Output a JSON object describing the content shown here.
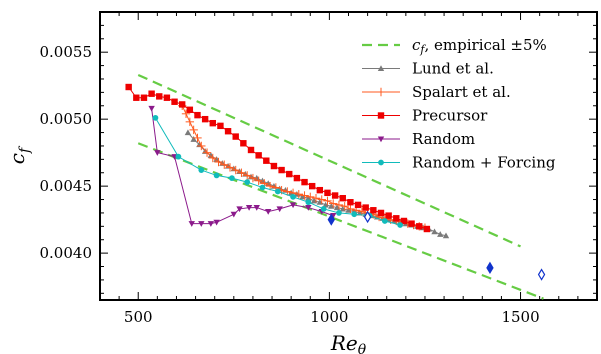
{
  "chart_data": {
    "type": "line",
    "xlabel": "Reθ",
    "ylabel": "c_f",
    "xlim": [
      400,
      1700
    ],
    "ylim": [
      0.00365,
      0.0058
    ],
    "x_ticks": [
      500,
      1000,
      1500
    ],
    "x_tick_labels": [
      "500",
      "1000",
      "1500"
    ],
    "y_ticks": [
      0.004,
      0.0045,
      0.005,
      0.0055
    ],
    "y_tick_labels": [
      "0.0040",
      "0.0045",
      "0.0050",
      "0.0055"
    ],
    "legend_position": "top-right",
    "series": [
      {
        "name": "c_f, empirical ±5%",
        "legend_parts": [
          "c",
          "f",
          ", empirical ±5%"
        ],
        "style": "dashed",
        "color": "#66cc44",
        "marker": "none",
        "lines": [
          {
            "x": [
              500,
              1500
            ],
            "y": [
              0.00533,
              0.00405
            ]
          },
          {
            "x": [
              500,
              1560
            ],
            "y": [
              0.00482,
              0.00366
            ]
          }
        ]
      },
      {
        "name": "Lund et al.",
        "color": "#7a7a7a",
        "marker": "triangle-up",
        "x": [
          630,
          645,
          660,
          675,
          690,
          705,
          720,
          735,
          750,
          765,
          780,
          795,
          810,
          825,
          840,
          855,
          870,
          885,
          900,
          915,
          930,
          945,
          960,
          975,
          990,
          1005,
          1020,
          1035,
          1050,
          1065,
          1080,
          1095,
          1110,
          1125,
          1140,
          1155,
          1170,
          1185,
          1200,
          1215,
          1230,
          1245,
          1260,
          1275,
          1290,
          1305
        ],
        "y": [
          0.0049,
          0.00485,
          0.00481,
          0.00476,
          0.00473,
          0.0047,
          0.00467,
          0.00465,
          0.00463,
          0.00461,
          0.00459,
          0.00457,
          0.00456,
          0.00454,
          0.00452,
          0.0045,
          0.00448,
          0.00447,
          0.00445,
          0.00444,
          0.00442,
          0.00441,
          0.00439,
          0.00438,
          0.00436,
          0.00435,
          0.00434,
          0.00433,
          0.00432,
          0.00431,
          0.0043,
          0.00429,
          0.00428,
          0.00427,
          0.00426,
          0.00425,
          0.00424,
          0.00423,
          0.00422,
          0.00421,
          0.0042,
          0.00419,
          0.00418,
          0.00416,
          0.00414,
          0.00413
        ]
      },
      {
        "name": "Spalart et al.",
        "color": "#ff5a1f",
        "marker": "plus",
        "x": [
          615,
          625,
          635,
          645,
          655,
          665,
          680,
          695,
          710,
          725,
          740,
          755,
          770,
          785,
          800,
          815,
          830,
          845,
          860,
          875,
          890,
          905,
          920,
          935,
          950,
          965,
          980,
          995,
          1010,
          1025,
          1040,
          1055,
          1070,
          1085,
          1100,
          1115,
          1130,
          1145,
          1160,
          1175,
          1190,
          1205,
          1220,
          1235,
          1250
        ],
        "y": [
          0.0051,
          0.00504,
          0.00498,
          0.00492,
          0.00486,
          0.0048,
          0.00475,
          0.00471,
          0.00468,
          0.00466,
          0.00464,
          0.00462,
          0.0046,
          0.00458,
          0.00456,
          0.00454,
          0.00452,
          0.0045,
          0.00449,
          0.00447,
          0.00446,
          0.00445,
          0.00444,
          0.00443,
          0.00442,
          0.00441,
          0.0044,
          0.00439,
          0.00437,
          0.00436,
          0.00435,
          0.00433,
          0.00432,
          0.00431,
          0.0043,
          0.00429,
          0.00427,
          0.00426,
          0.00425,
          0.00424,
          0.00423,
          0.00422,
          0.00421,
          0.0042,
          0.00419
        ]
      },
      {
        "name": "Precursor",
        "color": "#ee0000",
        "marker": "square",
        "x": [
          475,
          495,
          515,
          535,
          555,
          575,
          595,
          615,
          635,
          655,
          675,
          695,
          715,
          735,
          755,
          775,
          795,
          815,
          835,
          855,
          875,
          895,
          915,
          935,
          955,
          975,
          995,
          1015,
          1035,
          1055,
          1075,
          1095,
          1115,
          1135,
          1155,
          1175,
          1195,
          1215,
          1235,
          1255
        ],
        "y": [
          0.00524,
          0.00516,
          0.00516,
          0.00519,
          0.00517,
          0.00516,
          0.00513,
          0.00511,
          0.00507,
          0.00503,
          0.005,
          0.00497,
          0.00495,
          0.00491,
          0.00487,
          0.00482,
          0.00477,
          0.00473,
          0.00469,
          0.00465,
          0.00462,
          0.00459,
          0.00456,
          0.00453,
          0.0045,
          0.00447,
          0.00445,
          0.00443,
          0.00441,
          0.00438,
          0.00436,
          0.00434,
          0.00432,
          0.0043,
          0.00428,
          0.00426,
          0.00424,
          0.00422,
          0.0042,
          0.00418
        ]
      },
      {
        "name": "Random",
        "color": "#8b1a8b",
        "marker": "triangle-down",
        "x": [
          535,
          550,
          595,
          640,
          665,
          690,
          705,
          750,
          765,
          790,
          810,
          840,
          870,
          905,
          945,
          980,
          1010
        ],
        "y": [
          0.00508,
          0.00475,
          0.00472,
          0.00422,
          0.00422,
          0.00422,
          0.00423,
          0.00429,
          0.00433,
          0.00434,
          0.00434,
          0.00431,
          0.00433,
          0.00436,
          0.00434,
          0.00431,
          0.00428
        ]
      },
      {
        "name": "Random + Forcing",
        "color": "#11bbbb",
        "marker": "circle",
        "x": [
          545,
          605,
          665,
          705,
          745,
          785,
          825,
          865,
          905,
          945,
          985,
          1025,
          1065,
          1105,
          1145,
          1185
        ],
        "y": [
          0.00501,
          0.00472,
          0.00462,
          0.00458,
          0.00456,
          0.00453,
          0.00449,
          0.00446,
          0.00442,
          0.00438,
          0.00433,
          0.0043,
          0.00429,
          0.00428,
          0.00424,
          0.00421
        ]
      }
    ],
    "extra_markers": [
      {
        "x": 1005,
        "y": 0.00425,
        "style": "filled",
        "color": "#1133cc"
      },
      {
        "x": 1100,
        "y": 0.00427,
        "style": "open",
        "color": "#1133cc"
      },
      {
        "x": 1420,
        "y": 0.00389,
        "style": "filled",
        "color": "#1133cc"
      },
      {
        "x": 1555,
        "y": 0.00384,
        "style": "open",
        "color": "#1133cc"
      }
    ]
  }
}
